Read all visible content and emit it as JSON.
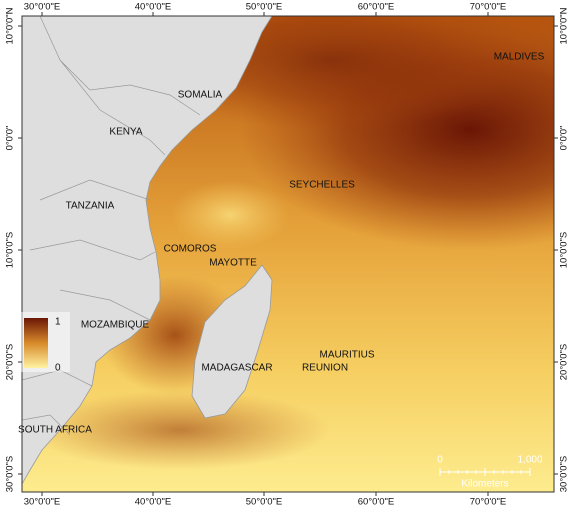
{
  "map": {
    "longitude_labels": [
      "30°0'0\"E",
      "40°0'0\"E",
      "50°0'0\"E",
      "60°0'0\"E",
      "70°0'0\"E"
    ],
    "latitude_labels": [
      "10°0'0\"N",
      "0°0'0\"",
      "10°0'0\"S",
      "20°0'0\"S",
      "30°0'0\"S"
    ],
    "places": [
      "MALDIVES",
      "SOMALIA",
      "KENYA",
      "SEYCHELLES",
      "TANZANIA",
      "COMOROS",
      "MAYOTTE",
      "MOZAMBIQUE",
      "MADAGASCAR",
      "MAURITIUS",
      "REUNION",
      "SOUTH AFRICA"
    ],
    "legend": {
      "max_label": "1",
      "min_label": "0"
    },
    "scale_bar": {
      "start_label": "0",
      "end_label": "1,000",
      "unit": "Kilometers"
    }
  }
}
